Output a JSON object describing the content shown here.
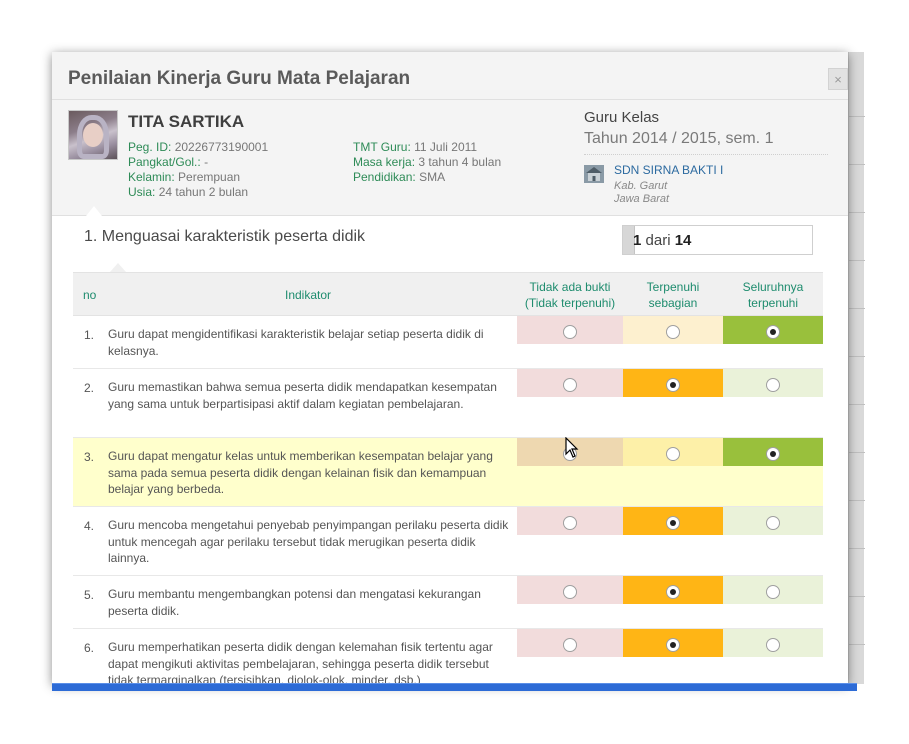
{
  "modal": {
    "title": "Penilaian Kinerja Guru Mata Pelajaran",
    "close_label": "×"
  },
  "teacher": {
    "name": "TITA SARTIKA",
    "fields": [
      {
        "label": "Peg. ID:",
        "value": "20226773190001"
      },
      {
        "label": "Pangkat/Gol.:",
        "value": "-"
      },
      {
        "label": "Kelamin:",
        "value": "Perempuan"
      },
      {
        "label": "Usia:",
        "value": "24 tahun 2 bulan"
      },
      {
        "label": "TMT Guru:",
        "value": "11 Juli 2011"
      },
      {
        "label": "Masa kerja:",
        "value": "3 tahun 4 bulan"
      },
      {
        "label": "Pendidikan:",
        "value": "SMA"
      }
    ]
  },
  "school": {
    "type": "Guru Kelas",
    "year": "Tahun 2014 / 2015, sem. 1",
    "name": "SDN SIRNA BAKTI I",
    "kabupaten": "Kab. Garut",
    "provinsi": "Jawa Barat",
    "icon": "school-building-icon"
  },
  "section": {
    "title": "1. Menguasai karakteristik peserta didik",
    "pager_current": "1",
    "pager_of": "dari",
    "pager_total": "14"
  },
  "table": {
    "headers": {
      "no": "no",
      "indicator": "Indikator",
      "col1_line1": "Tidak ada bukti",
      "col1_line2": "(Tidak terpenuhi)",
      "col2_line1": "Terpenuhi",
      "col2_line2": "sebagian",
      "col3_line1": "Seluruhnya",
      "col3_line2": "terpenuhi"
    },
    "rows": [
      {
        "no": "1.",
        "text": "Guru dapat mengidentifikasi karakteristik belajar setiap peserta didik di kelasnya.",
        "selected": 3
      },
      {
        "no": "2.",
        "text": "Guru memastikan bahwa semua peserta didik mendapatkan kesempatan yang sama untuk berpartisipasi aktif dalam kegiatan pembelajaran.",
        "selected": 2
      },
      {
        "no": "3.",
        "text": "Guru dapat mengatur kelas untuk memberikan kesempatan belajar yang sama pada semua peserta didik dengan kelainan fisik dan kemampuan belajar yang berbeda.",
        "selected": 3
      },
      {
        "no": "4.",
        "text": "Guru mencoba mengetahui penyebab penyimpangan perilaku peserta didik untuk mencegah agar perilaku tersebut tidak merugikan peserta didik lainnya.",
        "selected": 2
      },
      {
        "no": "5.",
        "text": "Guru membantu mengembangkan potensi dan mengatasi kekurangan peserta didik.",
        "selected": 2
      },
      {
        "no": "6.",
        "text": "Guru memperhatikan peserta didik dengan kelemahan fisik tertentu agar dapat mengikuti aktivitas pembelajaran, sehingga peserta didik tersebut tidak termarginalkan (tersisihkan, diolok-olok, minder, dsb.)",
        "selected": 2
      }
    ]
  },
  "colors": {
    "col1_bg": "#f2dcdc",
    "col1_hl": "#eed8b0",
    "col2_idle": "#fdf0cf",
    "col2_idle_hl": "#fdf0a8",
    "col2_selected": "#ffb515",
    "col3_idle": "#eaf2d9",
    "col3_selected": "#99c03c",
    "label_green": "#2e8b57",
    "accent_blue": "#2d6bd6"
  }
}
